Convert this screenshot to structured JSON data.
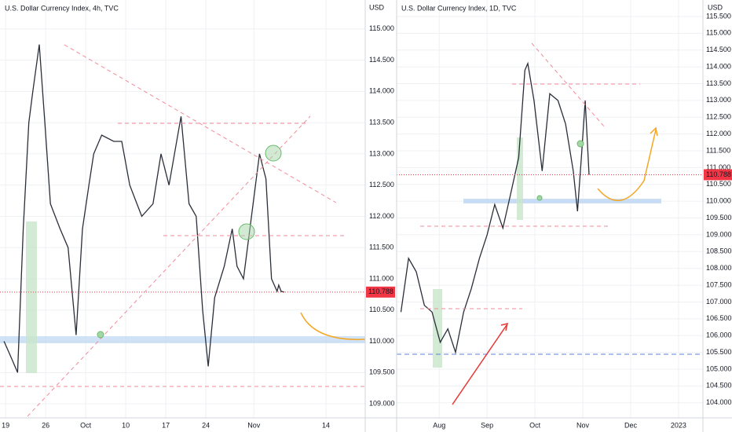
{
  "chart_data": [
    {
      "type": "line",
      "title": "U.S. Dollar Currency Index, 4h, TVC",
      "y_unit": "USD",
      "x": [
        -0.2,
        0.5,
        1.5,
        2.2,
        2.9,
        3.4,
        4.2,
        4.9,
        5.6,
        6.8,
        7.8,
        8.8,
        9.6,
        10.4,
        11.0,
        12.0,
        13.5,
        14.5,
        15.5,
        17.0,
        18.4,
        19.4,
        20.4,
        21.9,
        22.9,
        23.8,
        24.6,
        25.3,
        26.1,
        27.3,
        28.3,
        28.9,
        29.7,
        30.7,
        31.7,
        32.5,
        33.2,
        33.9,
        34.1,
        34.4,
        34.8
      ],
      "series": [
        {
          "color": "#2a2e39",
          "values": [
            110.0,
            109.8,
            109.5,
            111.8,
            113.5,
            114.0,
            114.75,
            113.5,
            112.2,
            111.8,
            111.5,
            110.1,
            111.8,
            112.5,
            113.0,
            113.3,
            113.2,
            113.2,
            112.5,
            112.0,
            112.2,
            113.0,
            112.5,
            113.6,
            112.2,
            112.0,
            110.5,
            109.6,
            110.7,
            111.2,
            111.8,
            111.2,
            111.0,
            112.0,
            113.0,
            112.6,
            111.0,
            110.8,
            110.9,
            110.8,
            110.788
          ]
        }
      ],
      "last_value": 110.788,
      "xlim": [
        -0.7,
        44.9
      ],
      "ylim": [
        108.775,
        115.4625
      ],
      "xticks": [
        {
          "value": 0,
          "label": "19"
        },
        {
          "value": 5,
          "label": "26"
        },
        {
          "value": 10,
          "label": "Oct"
        },
        {
          "value": 15,
          "label": "10"
        },
        {
          "value": 20,
          "label": "17"
        },
        {
          "value": 25,
          "label": "24"
        },
        {
          "value": 31,
          "label": "Nov"
        },
        {
          "value": 40,
          "label": "14"
        }
      ],
      "yticks": [
        {
          "value": 109,
          "label": "109.000"
        },
        {
          "value": 109.5,
          "label": "109.500"
        },
        {
          "value": 110,
          "label": "110.000"
        },
        {
          "value": 110.5,
          "label": "110.500"
        },
        {
          "value": 111,
          "label": "111.000"
        },
        {
          "value": 111.5,
          "label": "111.500"
        },
        {
          "value": 112,
          "label": "112.000"
        },
        {
          "value": 112.5,
          "label": "112.500"
        },
        {
          "value": 113,
          "label": "113.000"
        },
        {
          "value": 113.5,
          "label": "113.500"
        },
        {
          "value": 114,
          "label": "114.000"
        },
        {
          "value": 114.5,
          "label": "114.500"
        },
        {
          "value": 115,
          "label": "115.000"
        }
      ],
      "grid": true
    },
    {
      "type": "line",
      "title": "U.S. Dollar Currency Index, 1D, TVC",
      "y_unit": "USD",
      "x": [
        -0.8,
        -0.64,
        -0.48,
        -0.31,
        -0.15,
        0.02,
        0.18,
        0.34,
        0.51,
        0.67,
        0.84,
        1.0,
        1.16,
        1.33,
        1.49,
        1.66,
        1.79,
        1.85,
        1.98,
        2.15,
        2.31,
        2.48,
        2.64,
        2.8,
        2.89,
        2.97,
        3.05,
        3.13
      ],
      "series": [
        {
          "color": "#2a2e39",
          "values": [
            106.7,
            108.3,
            107.9,
            106.9,
            106.7,
            105.8,
            106.2,
            105.5,
            106.7,
            107.4,
            108.3,
            109.0,
            109.9,
            109.2,
            110.2,
            111.3,
            113.9,
            114.1,
            113.0,
            110.9,
            113.2,
            113.0,
            112.3,
            110.9,
            109.7,
            111.3,
            113.0,
            110.788
          ]
        }
      ],
      "last_value": 110.788,
      "xlim": [
        -0.89,
        5.51
      ],
      "ylim": [
        103.55,
        115.99
      ],
      "xticks": [
        {
          "value": 0,
          "label": "Aug"
        },
        {
          "value": 1,
          "label": "Sep"
        },
        {
          "value": 2,
          "label": "Oct"
        },
        {
          "value": 3,
          "label": "Nov"
        },
        {
          "value": 4,
          "label": "Dec"
        },
        {
          "value": 5,
          "label": "2023"
        }
      ],
      "yticks": [
        {
          "value": 104,
          "label": "104.000"
        },
        {
          "value": 104.5,
          "label": "104.500"
        },
        {
          "value": 105,
          "label": "105.000"
        },
        {
          "value": 105.5,
          "label": "105.500"
        },
        {
          "value": 106,
          "label": "106.000"
        },
        {
          "value": 106.5,
          "label": "106.500"
        },
        {
          "value": 107,
          "label": "107.000"
        },
        {
          "value": 107.5,
          "label": "107.500"
        },
        {
          "value": 108,
          "label": "108.000"
        },
        {
          "value": 108.5,
          "label": "108.500"
        },
        {
          "value": 109,
          "label": "109.000"
        },
        {
          "value": 109.5,
          "label": "109.500"
        },
        {
          "value": 110,
          "label": "110.000"
        },
        {
          "value": 110.5,
          "label": "110.500"
        },
        {
          "value": 111,
          "label": "111.000"
        },
        {
          "value": 111.5,
          "label": "111.500"
        },
        {
          "value": 112,
          "label": "112.000"
        },
        {
          "value": 112.5,
          "label": "112.500"
        },
        {
          "value": 113,
          "label": "113.000"
        },
        {
          "value": 113.5,
          "label": "113.500"
        },
        {
          "value": 114,
          "label": "114.000"
        },
        {
          "value": 114.5,
          "label": "114.500"
        },
        {
          "value": 115,
          "label": "115.000"
        },
        {
          "value": 115.5,
          "label": "115.500"
        }
      ],
      "grid": true
    }
  ]
}
